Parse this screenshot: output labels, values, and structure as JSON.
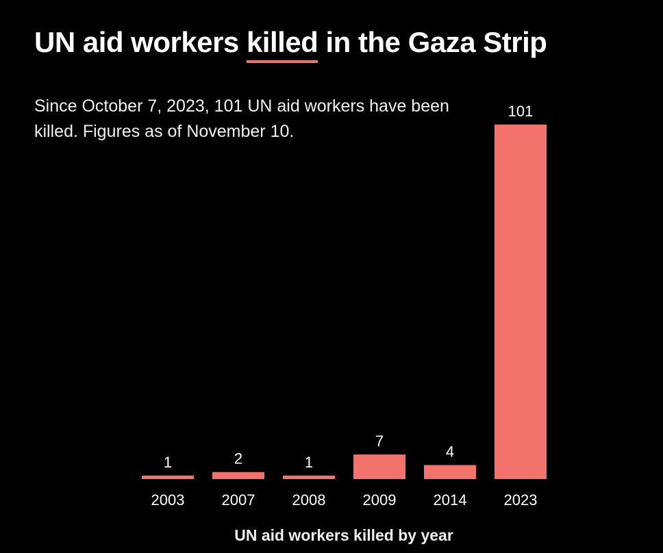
{
  "chart_data": {
    "type": "bar",
    "title_parts": [
      "UN aid workers ",
      "killed",
      " in the Gaza Strip"
    ],
    "subtitle": "Since October 7, 2023, 101 UN aid workers have been killed. Figures as of November 10.",
    "categories": [
      "2003",
      "2007",
      "2008",
      "2009",
      "2014",
      "2023"
    ],
    "values": [
      1,
      2,
      1,
      7,
      4,
      101
    ],
    "xlabel": "UN aid workers killed by year",
    "ylabel": "",
    "ylim": [
      0,
      101
    ],
    "grid": false,
    "bar_color": "#f2736b"
  }
}
